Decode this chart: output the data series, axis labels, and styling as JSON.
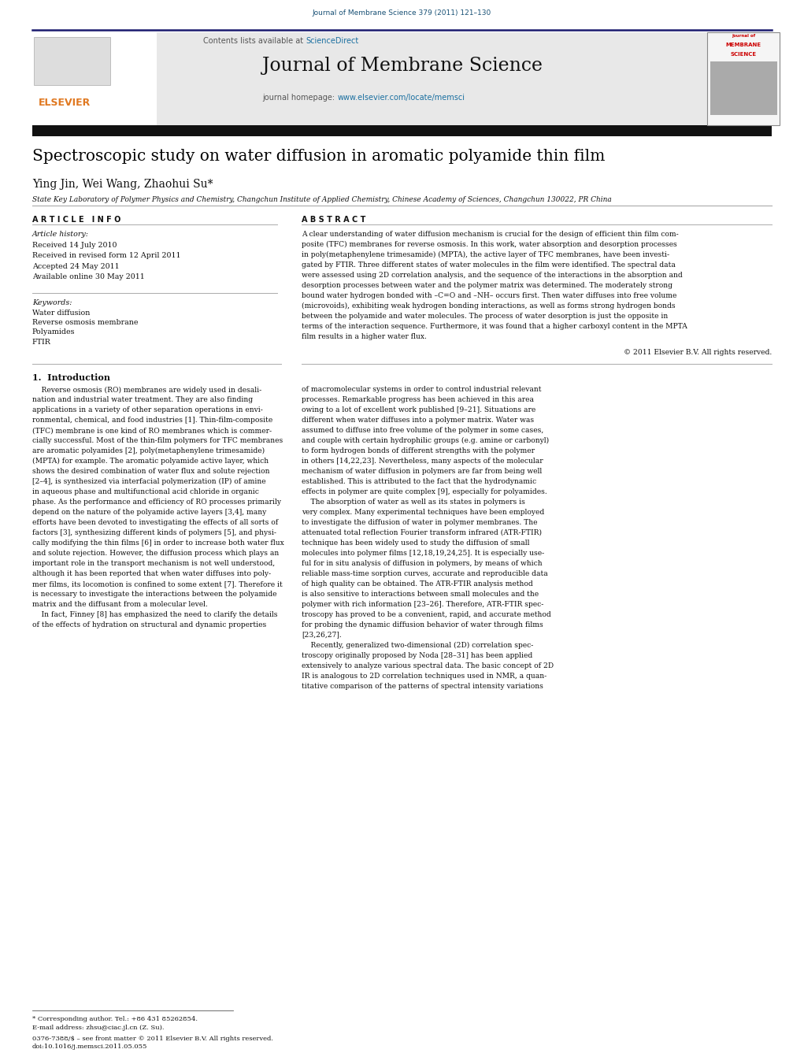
{
  "page_width": 10.21,
  "page_height": 13.51,
  "bg_color": "#ffffff",
  "journal_ref": "Journal of Membrane Science 379 (2011) 121–130",
  "journal_ref_color": "#1a5276",
  "header_bg": "#e8e8e8",
  "header_border_color": "#1a1a6e",
  "journal_name": "Journal of Membrane Science",
  "contents_text": "Contents lists available at ",
  "sciencedirect_text": "ScienceDirect",
  "sciencedirect_color": "#1a6fa0",
  "homepage_text": "journal homepage: ",
  "homepage_url": "www.elsevier.com/locate/memsci",
  "homepage_url_color": "#1a6fa0",
  "elsevier_color": "#e07820",
  "article_title": "Spectroscopic study on water diffusion in aromatic polyamide thin film",
  "article_title_color": "#000000",
  "authors": "Ying Jin, Wei Wang, Zhaohui Su*",
  "affiliation": "State Key Laboratory of Polymer Physics and Chemistry, Changchun Institute of Applied Chemistry, Chinese Academy of Sciences, Changchun 130022, PR China",
  "section_article_info": "A R T I C L E   I N F O",
  "section_abstract": "A B S T R A C T",
  "article_history_label": "Article history:",
  "received1": "Received 14 July 2010",
  "received2": "Received in revised form 12 April 2011",
  "accepted": "Accepted 24 May 2011",
  "available": "Available online 30 May 2011",
  "keywords_label": "Keywords:",
  "keyword1": "Water diffusion",
  "keyword2": "Reverse osmosis membrane",
  "keyword3": "Polyamides",
  "keyword4": "FTIR",
  "copyright": "© 2011 Elsevier B.V. All rights reserved.",
  "section1_title": "1.  Introduction",
  "footnote1": "* Corresponding author. Tel.: +86 431 85262854.",
  "footnote2": "E-mail address: zhsu@ciac.jl.cn (Z. Su).",
  "footnote3": "0376-7388/$ – see front matter © 2011 Elsevier B.V. All rights reserved.",
  "footnote4": "doi:10.1016/j.memsci.2011.05.055",
  "abstract_lines": [
    "A clear understanding of water diffusion mechanism is crucial for the design of efficient thin film com-",
    "posite (TFC) membranes for reverse osmosis. In this work, water absorption and desorption processes",
    "in poly(metaphenylene trimesamide) (MPTA), the active layer of TFC membranes, have been investi-",
    "gated by FTIR. Three different states of water molecules in the film were identified. The spectral data",
    "were assessed using 2D correlation analysis, and the sequence of the interactions in the absorption and",
    "desorption processes between water and the polymer matrix was determined. The moderately strong",
    "bound water hydrogen bonded with –C=O and –NH– occurs first. Then water diffuses into free volume",
    "(microvoids), exhibiting weak hydrogen bonding interactions, as well as forms strong hydrogen bonds",
    "between the polyamide and water molecules. The process of water desorption is just the opposite in",
    "terms of the interaction sequence. Furthermore, it was found that a higher carboxyl content in the MPTA",
    "film results in a higher water flux."
  ],
  "intro_lines_col1": [
    "    Reverse osmosis (RO) membranes are widely used in desali-",
    "nation and industrial water treatment. They are also finding",
    "applications in a variety of other separation operations in envi-",
    "ronmental, chemical, and food industries [1]. Thin-film-composite",
    "(TFC) membrane is one kind of RO membranes which is commer-",
    "cially successful. Most of the thin-film polymers for TFC membranes",
    "are aromatic polyamides [2], poly(metaphenylene trimesamide)",
    "(MPTA) for example. The aromatic polyamide active layer, which",
    "shows the desired combination of water flux and solute rejection",
    "[2–4], is synthesized via interfacial polymerization (IP) of amine",
    "in aqueous phase and multifunctional acid chloride in organic",
    "phase. As the performance and efficiency of RO processes primarily",
    "depend on the nature of the polyamide active layers [3,4], many",
    "efforts have been devoted to investigating the effects of all sorts of",
    "factors [3], synthesizing different kinds of polymers [5], and physi-",
    "cally modifying the thin films [6] in order to increase both water flux",
    "and solute rejection. However, the diffusion process which plays an",
    "important role in the transport mechanism is not well understood,",
    "although it has been reported that when water diffuses into poly-",
    "mer films, its locomotion is confined to some extent [7]. Therefore it",
    "is necessary to investigate the interactions between the polyamide",
    "matrix and the diffusant from a molecular level.",
    "    In fact, Finney [8] has emphasized the need to clarify the details",
    "of the effects of hydration on structural and dynamic properties"
  ],
  "intro_lines_col2": [
    "of macromolecular systems in order to control industrial relevant",
    "processes. Remarkable progress has been achieved in this area",
    "owing to a lot of excellent work published [9–21]. Situations are",
    "different when water diffuses into a polymer matrix. Water was",
    "assumed to diffuse into free volume of the polymer in some cases,",
    "and couple with certain hydrophilic groups (e.g. amine or carbonyl)",
    "to form hydrogen bonds of different strengths with the polymer",
    "in others [14,22,23]. Nevertheless, many aspects of the molecular",
    "mechanism of water diffusion in polymers are far from being well",
    "established. This is attributed to the fact that the hydrodynamic",
    "effects in polymer are quite complex [9], especially for polyamides.",
    "    The absorption of water as well as its states in polymers is",
    "very complex. Many experimental techniques have been employed",
    "to investigate the diffusion of water in polymer membranes. The",
    "attenuated total reflection Fourier transform infrared (ATR-FTIR)",
    "technique has been widely used to study the diffusion of small",
    "molecules into polymer films [12,18,19,24,25]. It is especially use-",
    "ful for in situ analysis of diffusion in polymers, by means of which",
    "reliable mass-time sorption curves, accurate and reproducible data",
    "of high quality can be obtained. The ATR-FTIR analysis method",
    "is also sensitive to interactions between small molecules and the",
    "polymer with rich information [23–26]. Therefore, ATR-FTIR spec-",
    "troscopy has proved to be a convenient, rapid, and accurate method",
    "for probing the dynamic diffusion behavior of water through films",
    "[23,26,27].",
    "    Recently, generalized two-dimensional (2D) correlation spec-",
    "troscopy originally proposed by Noda [28–31] has been applied",
    "extensively to analyze various spectral data. The basic concept of 2D",
    "IR is analogous to 2D correlation techniques used in NMR, a quan-",
    "titative comparison of the patterns of spectral intensity variations"
  ]
}
